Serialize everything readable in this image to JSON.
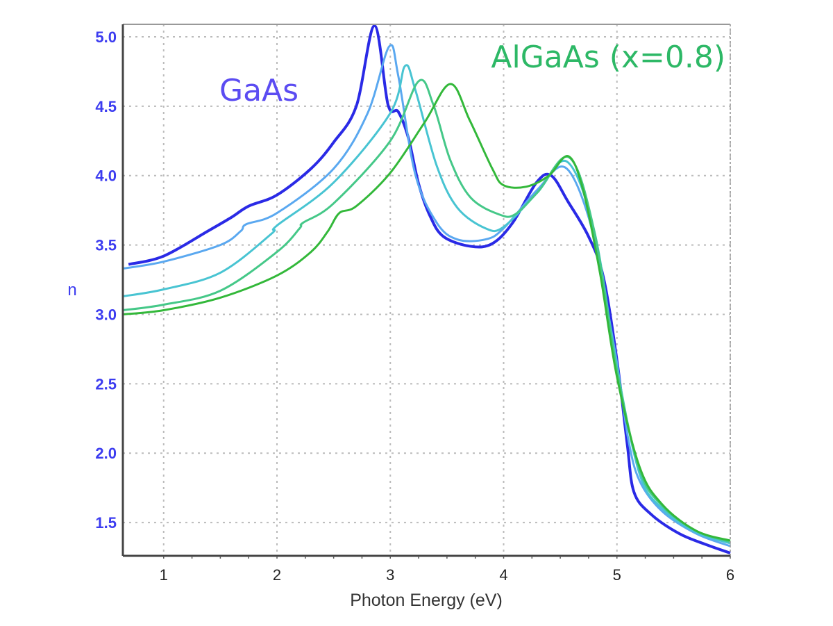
{
  "chart_data": {
    "type": "line",
    "title": "",
    "xlabel": "Photon Energy (eV)",
    "ylabel": "n",
    "xlim": [
      0.64,
      6.0
    ],
    "ylim": [
      1.26,
      5.09
    ],
    "xticks": [
      "1",
      "2",
      "3",
      "4",
      "5",
      "6"
    ],
    "yticks": [
      "1.5",
      "2.0",
      "2.5",
      "3.0",
      "3.5",
      "4.0",
      "4.5",
      "5.0"
    ],
    "grid": true,
    "annotations": [
      {
        "text": "GaAs",
        "color": "#5b4cf2"
      },
      {
        "text": "AlGaAs (x=0.8)",
        "color": "#2db866"
      }
    ],
    "series": [
      {
        "color": "#2a2ae6",
        "x": [
          0.69,
          1.0,
          1.39,
          1.6,
          1.75,
          2.0,
          2.3,
          2.5,
          2.7,
          2.86,
          2.98,
          3.07,
          3.16,
          3.25,
          3.35,
          3.47,
          3.71,
          3.9,
          4.08,
          4.29,
          4.42,
          4.57,
          4.75,
          4.88,
          5.0,
          5.09,
          5.15,
          5.3,
          5.55,
          5.79,
          6.0
        ],
        "y": [
          3.36,
          3.42,
          3.6,
          3.7,
          3.78,
          3.86,
          4.05,
          4.24,
          4.5,
          5.08,
          4.51,
          4.46,
          4.27,
          3.94,
          3.71,
          3.56,
          3.49,
          3.51,
          3.66,
          3.95,
          4.0,
          3.81,
          3.56,
          3.27,
          2.67,
          2.07,
          1.72,
          1.56,
          1.42,
          1.34,
          1.28
        ]
      },
      {
        "color": "#5aa8f0",
        "x": [
          0.64,
          1.0,
          1.5,
          1.68,
          1.73,
          2.0,
          2.5,
          2.8,
          2.99,
          3.07,
          3.22,
          3.41,
          3.59,
          3.84,
          4.0,
          4.3,
          4.54,
          4.75,
          4.9,
          5.0,
          5.1,
          5.2,
          5.4,
          5.7,
          6.0
        ],
        "y": [
          3.33,
          3.38,
          3.5,
          3.6,
          3.65,
          3.73,
          4.05,
          4.45,
          4.93,
          4.72,
          4.01,
          3.66,
          3.54,
          3.54,
          3.62,
          3.9,
          4.06,
          3.7,
          3.1,
          2.65,
          2.1,
          1.8,
          1.58,
          1.42,
          1.33
        ]
      },
      {
        "color": "#48c4d2",
        "x": [
          0.64,
          1.0,
          1.5,
          1.95,
          2.0,
          2.5,
          3.0,
          3.13,
          3.22,
          3.41,
          3.59,
          3.84,
          4.0,
          4.3,
          4.56,
          4.8,
          5.0,
          5.2,
          5.4,
          5.7,
          6.0
        ],
        "y": [
          3.13,
          3.18,
          3.3,
          3.58,
          3.64,
          3.95,
          4.45,
          4.79,
          4.62,
          4.07,
          3.77,
          3.62,
          3.63,
          3.88,
          4.1,
          3.6,
          2.62,
          1.85,
          1.6,
          1.43,
          1.35
        ]
      },
      {
        "color": "#45c888",
        "x": [
          0.64,
          1.0,
          1.5,
          2.0,
          2.2,
          2.23,
          2.5,
          3.0,
          3.25,
          3.38,
          3.53,
          3.71,
          3.96,
          4.1,
          4.3,
          4.58,
          4.8,
          5.0,
          5.2,
          5.4,
          5.7,
          6.0
        ],
        "y": [
          3.03,
          3.07,
          3.17,
          3.45,
          3.62,
          3.66,
          3.8,
          4.25,
          4.68,
          4.51,
          4.11,
          3.84,
          3.72,
          3.72,
          3.88,
          4.13,
          3.6,
          2.6,
          1.88,
          1.62,
          1.44,
          1.36
        ]
      },
      {
        "color": "#33b83a",
        "x": [
          0.64,
          1.0,
          1.5,
          2.0,
          2.3,
          2.45,
          2.55,
          2.7,
          3.0,
          3.3,
          3.53,
          3.7,
          3.9,
          4.0,
          4.2,
          4.4,
          4.57,
          4.7,
          4.85,
          5.0,
          5.2,
          5.4,
          5.7,
          6.0
        ],
        "y": [
          3.0,
          3.03,
          3.12,
          3.28,
          3.45,
          3.6,
          3.73,
          3.78,
          4.02,
          4.38,
          4.66,
          4.4,
          4.05,
          3.93,
          3.92,
          4.0,
          4.14,
          3.9,
          3.3,
          2.55,
          1.9,
          1.63,
          1.44,
          1.37
        ]
      }
    ]
  }
}
